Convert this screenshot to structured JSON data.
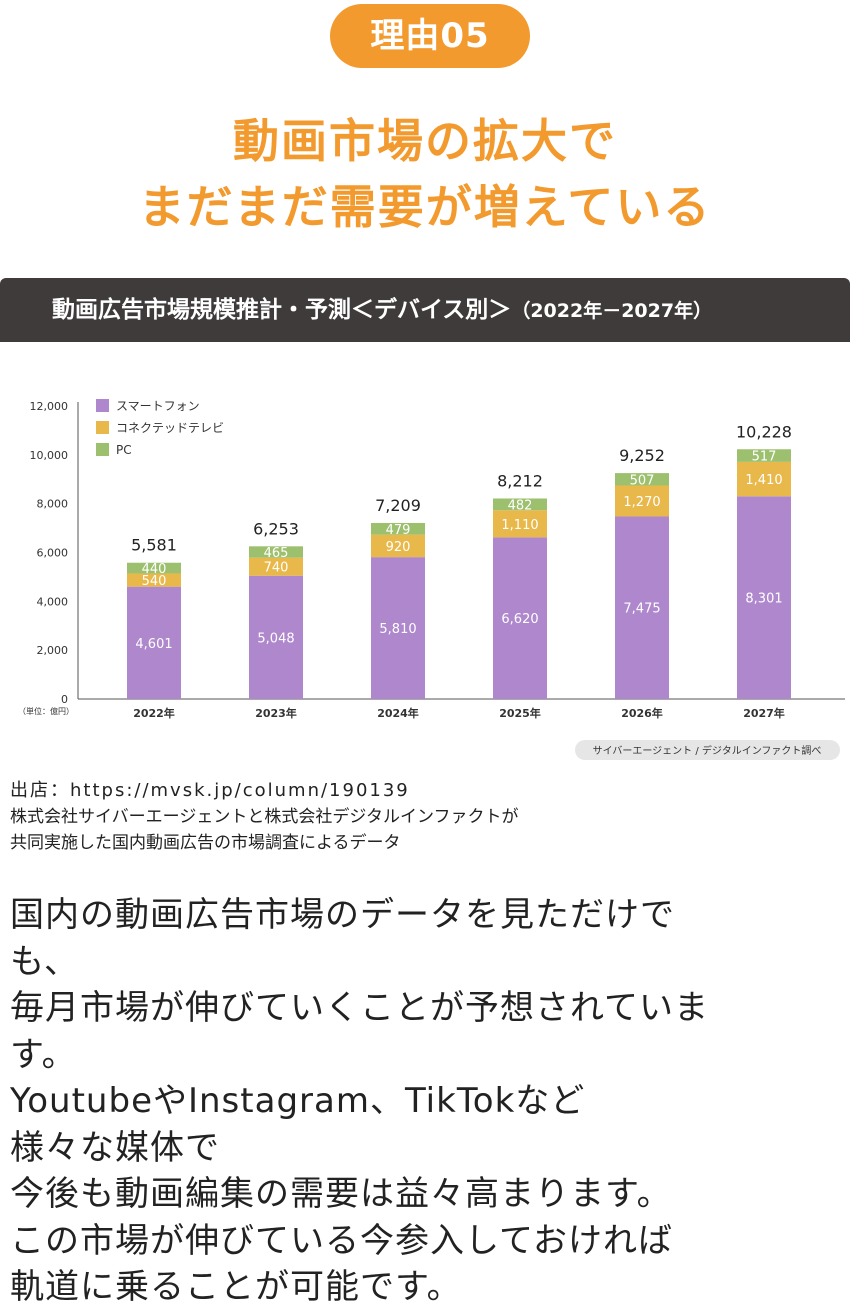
{
  "badge": "理由05",
  "headline": [
    "動画市場の拡大で",
    "まだまだ需要が増えている"
  ],
  "chart_header": {
    "title": "動画広告市場規模推計・予測＜デバイス別＞",
    "period": "（2022年－2027年）"
  },
  "chart_data": {
    "type": "bar",
    "stacked": true,
    "categories": [
      "2022年",
      "2023年",
      "2024年",
      "2025年",
      "2026年",
      "2027年"
    ],
    "series": [
      {
        "name": "スマートフォン",
        "color": "#ae87cc",
        "values": [
          4601,
          5048,
          5810,
          6620,
          7475,
          8301
        ]
      },
      {
        "name": "コネクテッドテレビ",
        "color": "#e8b84b",
        "values": [
          540,
          740,
          920,
          1110,
          1270,
          1410
        ]
      },
      {
        "name": "PC",
        "color": "#9cc06e",
        "values": [
          440,
          465,
          479,
          482,
          507,
          517
        ]
      }
    ],
    "totals": [
      5581,
      6253,
      7209,
      8212,
      9252,
      10228
    ],
    "ylim": [
      0,
      12000
    ],
    "yticks": [
      0,
      2000,
      4000,
      6000,
      8000,
      10000,
      12000
    ],
    "ylabel": "（単位：億円）",
    "legend_position": "top-left",
    "note": "サイバーエージェント / デジタルインファクト調べ"
  },
  "source_lines": [
    "出店：https://mvsk.jp/column/190139",
    "株式会社サイバーエージェントと株式会社デジタルインファクトが",
    "共同実施した国内動画広告の市場調査によるデータ"
  ],
  "body_lines": [
    "国内の動画広告市場のデータを見ただけで",
    "も、",
    "毎月市場が伸びていくことが予想されていま",
    "す。",
    "YoutubeやInstagram、TikTokなど",
    "様々な媒体で",
    "今後も動画編集の需要は益々高まります。",
    "この市場が伸びている今参入しておければ",
    "軌道に乗ることが可能です。"
  ]
}
